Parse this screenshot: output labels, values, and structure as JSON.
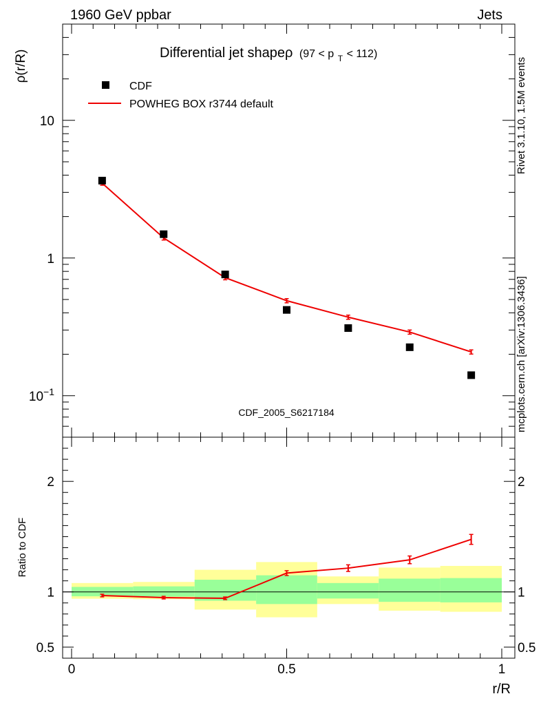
{
  "header": {
    "left": "1960 GeV ppbar",
    "right": "Jets"
  },
  "side_labels": {
    "rivet": "Rivet 3.1.10,  1.5M events",
    "mcplots": "mcplots.cern.ch [arXiv:1306.3436]"
  },
  "watermark": "CDF_2005_S6217184",
  "chart_data": {
    "type": "scatter",
    "title": "Differential jet shapeρ",
    "title_range": {
      "open": "(97 < p",
      "sub": "T",
      "close": " < 112)"
    },
    "ylabel": "ρ(r/R)",
    "xlabel": "r/R",
    "ratio_ylabel": "Ratio to CDF",
    "xlim": [
      0,
      1
    ],
    "ylim": [
      0.05,
      50
    ],
    "ratio_ylim": [
      0.4,
      2.4
    ],
    "x_ticks": [
      {
        "value": 0,
        "label": "0"
      },
      {
        "value": 0.5,
        "label": "0.5"
      },
      {
        "value": 1,
        "label": "1"
      }
    ],
    "y_ticks": [
      {
        "value": 10,
        "label": "10"
      },
      {
        "value": 1,
        "label": "1"
      },
      {
        "value": 0.1,
        "label": "10",
        "sup": "−1"
      }
    ],
    "ratio_ticks": [
      {
        "value": 2,
        "label": "2"
      },
      {
        "value": 1,
        "label": "1"
      },
      {
        "value": 0.5,
        "label": "0.5"
      }
    ],
    "legend": [
      {
        "name": "CDF",
        "style": "marker",
        "color": "#000000"
      },
      {
        "name": "POWHEG BOX r3744 default",
        "style": "line",
        "color": "#ee0000"
      }
    ],
    "series": [
      {
        "name": "CDF",
        "x": [
          0.071,
          0.214,
          0.357,
          0.5,
          0.643,
          0.786,
          0.929
        ],
        "y": [
          3.65,
          1.49,
          0.76,
          0.42,
          0.31,
          0.225,
          0.141
        ]
      },
      {
        "name": "POWHEG BOX r3744 default",
        "x": [
          0.071,
          0.214,
          0.357,
          0.5,
          0.643,
          0.786,
          0.929
        ],
        "y": [
          3.5,
          1.4,
          0.72,
          0.49,
          0.372,
          0.29,
          0.208
        ]
      }
    ],
    "ratio": {
      "x": [
        0.071,
        0.214,
        0.357,
        0.5,
        0.643,
        0.786,
        0.929
      ],
      "y": [
        0.967,
        0.948,
        0.942,
        1.17,
        1.215,
        1.29,
        1.475
      ],
      "err": [
        0.012,
        0.012,
        0.012,
        0.022,
        0.03,
        0.035,
        0.045
      ]
    },
    "bands": [
      {
        "x0": 0.0,
        "x1": 0.143,
        "yellow": [
          0.938,
          1.08
        ],
        "green": [
          0.96,
          1.045
        ]
      },
      {
        "x0": 0.143,
        "x1": 0.286,
        "yellow": [
          0.934,
          1.09
        ],
        "green": [
          0.957,
          1.05
        ]
      },
      {
        "x0": 0.286,
        "x1": 0.429,
        "yellow": [
          0.84,
          1.2
        ],
        "green": [
          0.92,
          1.11
        ]
      },
      {
        "x0": 0.429,
        "x1": 0.571,
        "yellow": [
          0.77,
          1.27
        ],
        "green": [
          0.89,
          1.15
        ]
      },
      {
        "x0": 0.571,
        "x1": 0.714,
        "yellow": [
          0.89,
          1.14
        ],
        "green": [
          0.94,
          1.08
        ]
      },
      {
        "x0": 0.714,
        "x1": 0.857,
        "yellow": [
          0.83,
          1.22
        ],
        "green": [
          0.91,
          1.12
        ]
      },
      {
        "x0": 0.857,
        "x1": 1.0,
        "yellow": [
          0.82,
          1.235
        ],
        "green": [
          0.905,
          1.125
        ]
      }
    ],
    "colors": {
      "mc": "#ee0000",
      "data": "#000000",
      "band_yellow": "#ffff99",
      "band_green": "#99ff99",
      "watermark": "#999999",
      "side": "#888888"
    }
  }
}
